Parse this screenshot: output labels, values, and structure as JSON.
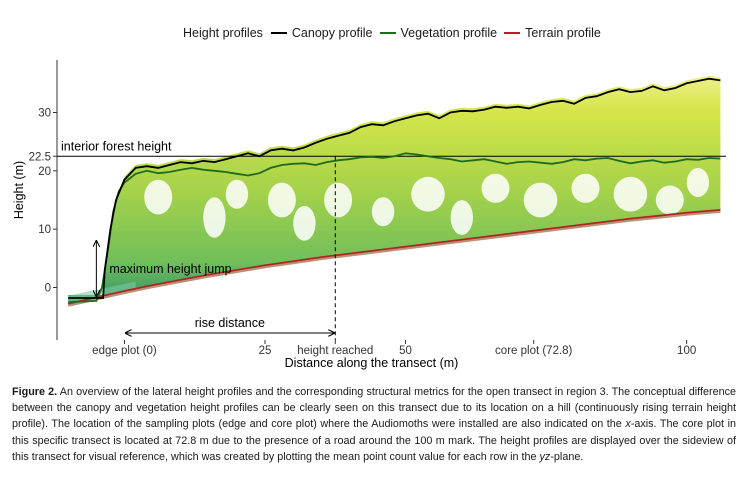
{
  "legend": {
    "title": "Height profiles",
    "items": [
      {
        "label": "Canopy profile",
        "color": "#000000"
      },
      {
        "label": "Vegetation profile",
        "color": "#1e6b1e"
      },
      {
        "label": "Terrain profile",
        "color": "#b22222"
      }
    ]
  },
  "chart_data": {
    "type": "line",
    "xlabel": "Distance along the transect (m)",
    "ylabel": "Height (m)",
    "xlim": [
      -12,
      107
    ],
    "ylim": [
      -9,
      39
    ],
    "x_ticks": [
      {
        "value": 0,
        "label": "edge plot (0)"
      },
      {
        "value": 25,
        "label": "25"
      },
      {
        "value": 37.5,
        "label": "height reached"
      },
      {
        "value": 50,
        "label": "50"
      },
      {
        "value": 72.8,
        "label": "core plot (72.8)"
      },
      {
        "value": 100,
        "label": "100"
      }
    ],
    "y_ticks": [
      {
        "value": 0,
        "label": "0"
      },
      {
        "value": 10,
        "label": "10"
      },
      {
        "value": 20,
        "label": "20"
      },
      {
        "value": 22.5,
        "label": "22.5"
      },
      {
        "value": 30,
        "label": "30"
      }
    ],
    "grid": false,
    "legend_position": "top",
    "series": [
      {
        "name": "Canopy profile",
        "color": "#000000",
        "x": [
          -10,
          -3.8,
          -3.5,
          -2.5,
          -1.5,
          0,
          2,
          4,
          6,
          8,
          10,
          12,
          14,
          16,
          18,
          20,
          22,
          24,
          26,
          28,
          30,
          32,
          34,
          36,
          38,
          40,
          42,
          44,
          46,
          48,
          50,
          52,
          54,
          56,
          58,
          60,
          62,
          64,
          66,
          68,
          70,
          72,
          74,
          76,
          78,
          80,
          82,
          84,
          86,
          88,
          90,
          92,
          94,
          96,
          98,
          100,
          102,
          104,
          106
        ],
        "y": [
          -1.8,
          -1.8,
          3,
          10,
          15,
          18.5,
          20.5,
          20.8,
          20.5,
          21,
          21.5,
          21.3,
          21.7,
          21.5,
          22,
          22.5,
          23,
          22.5,
          23.5,
          23.8,
          23.5,
          24,
          24.8,
          25.5,
          26,
          26.5,
          27.5,
          28,
          27.8,
          28.5,
          29,
          29.5,
          29.8,
          29,
          30,
          30.3,
          30.2,
          30.5,
          31,
          30.8,
          31,
          30.7,
          31.3,
          31.8,
          32,
          31.5,
          32.5,
          32.8,
          33.5,
          34,
          33.5,
          33.7,
          34.5,
          33.8,
          34.2,
          35,
          35.4,
          35.8,
          35.5
        ]
      },
      {
        "name": "Vegetation profile",
        "color": "#1e6b1e",
        "x": [
          -10,
          -5,
          -4,
          -3,
          -2,
          -1,
          0,
          2,
          4,
          6,
          8,
          10,
          12,
          14,
          16,
          18,
          20,
          22,
          24,
          26,
          28,
          30,
          32,
          34,
          36,
          38,
          40,
          42,
          44,
          46,
          48,
          50,
          52,
          54,
          56,
          58,
          60,
          62,
          64,
          66,
          68,
          70,
          72,
          74,
          76,
          78,
          80,
          82,
          84,
          86,
          88,
          90,
          92,
          94,
          96,
          98,
          100,
          102,
          104,
          106
        ],
        "y": [
          -2.5,
          -2.3,
          0,
          6,
          13,
          16.5,
          18,
          19.5,
          20,
          19.6,
          19.8,
          20.2,
          20.5,
          20.2,
          20,
          19.8,
          19.5,
          19.2,
          19.6,
          20.5,
          21,
          21.2,
          21.3,
          21,
          21.5,
          21.8,
          22,
          22.3,
          22.4,
          22.2,
          22.5,
          23,
          22.8,
          22.5,
          22.2,
          22,
          21.6,
          21.8,
          22,
          21.6,
          21.2,
          21.5,
          21.6,
          21.4,
          21.2,
          21.5,
          22,
          21.8,
          22.1,
          22.2,
          21.7,
          21.3,
          21.6,
          21.8,
          21.4,
          21.6,
          22,
          21.9,
          22.2,
          22.1
        ]
      },
      {
        "name": "Terrain profile",
        "color": "#b22222",
        "x": [
          -10,
          -5,
          0,
          5,
          10,
          15,
          20,
          25,
          30,
          35,
          40,
          45,
          50,
          55,
          60,
          65,
          70,
          75,
          80,
          85,
          90,
          95,
          100,
          106
        ],
        "y": [
          -2.8,
          -1.7,
          -0.6,
          0.4,
          1.3,
          2.2,
          3,
          3.8,
          4.5,
          5.2,
          5.8,
          6.4,
          7,
          7.6,
          8.2,
          8.8,
          9.4,
          10,
          10.6,
          11.2,
          11.8,
          12.3,
          12.8,
          13.3
        ]
      }
    ],
    "annotations": [
      {
        "type": "hline",
        "y": 22.5,
        "label": "interior forest height"
      },
      {
        "type": "vline",
        "x": 37.5,
        "y_range": [
          -9,
          22.5
        ]
      },
      {
        "type": "vertical-arrow",
        "x": -5,
        "y_range": [
          -1.5,
          8
        ],
        "label": "maximum height jump"
      },
      {
        "type": "horizontal-arrow",
        "y": -7.8,
        "x_range": [
          0,
          37.5
        ],
        "label": "rise distance"
      }
    ]
  },
  "caption": {
    "label": "Figure 2.",
    "s1": "An overview of the lateral height profiles and the corresponding structural metrics for the open transect in region 3. The conceptual difference between the canopy and vegetation height profiles can be clearly seen on this transect due to its location on a hill (continuously rising terrain height profile). The location of the sampling plots (edge and core plot) where the Audiomoths were installed are also indicated on the",
    "x_axis": "x",
    "s2": "-axis. The core plot in this specific transect is located at 72.8 m due to the presence of a road around the 100 m mark. The height profiles are displayed over the sideview of this transect for visual reference, which was created by plotting the mean point count value for each row in the",
    "plane": "yz",
    "s3": "-plane."
  }
}
